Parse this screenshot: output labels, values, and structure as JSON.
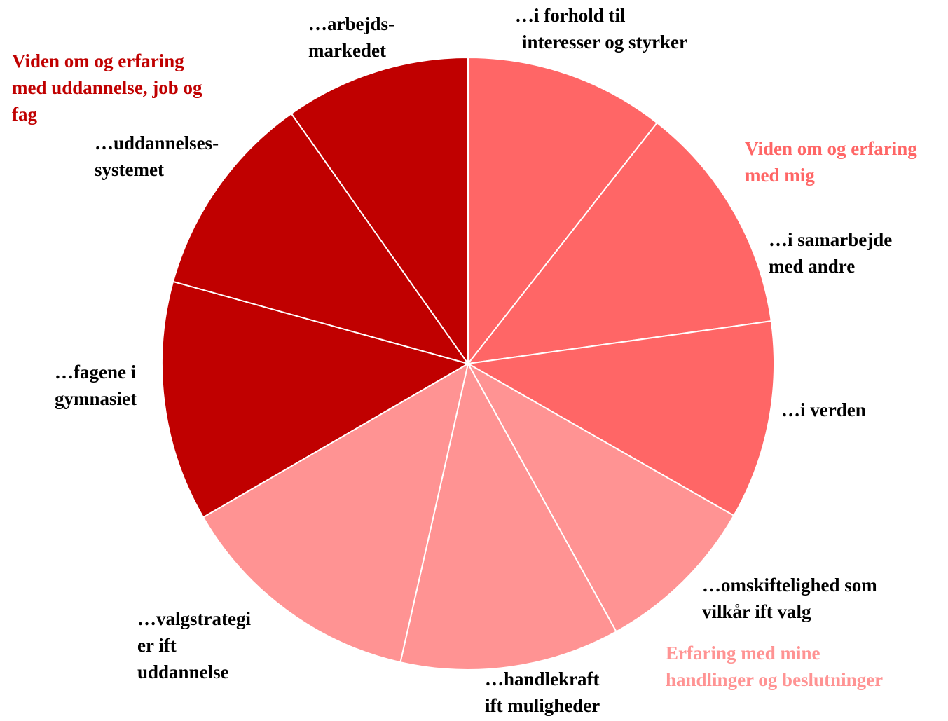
{
  "chart_data": {
    "type": "pie",
    "labels": [
      [
        "…i forhold til",
        "interesser og styrker"
      ],
      [
        "…i samarbejde",
        "med andre"
      ],
      [
        "…i verden"
      ],
      [
        "…omskiftelighed som",
        "vilkår ift valg"
      ],
      [
        "…handlekraft",
        "ift muligheder"
      ],
      [
        "…valgstrategi",
        "er ift",
        "uddannelse"
      ],
      [
        "…fagene i",
        "gymnasiet"
      ],
      [
        "…uddannelses-",
        "systemet"
      ],
      [
        "…arbejds-",
        "markedet"
      ]
    ],
    "values": [
      10.6,
      12.2,
      10.5,
      8.7,
      11.6,
      13.1,
      12.7,
      10.9,
      9.8
    ],
    "colors": [
      "#ff6666",
      "#ff6666",
      "#ff6666",
      "#ff9393",
      "#ff9393",
      "#ff9393",
      "#c00000",
      "#c00000",
      "#c00000"
    ],
    "groups": [
      {
        "name": [
          "Viden om og erfaring",
          "med mig"
        ],
        "color": "#ff6666"
      },
      {
        "name": [
          "Erfaring med mine",
          "handlinger og beslutninger"
        ],
        "color": "#ff9393"
      },
      {
        "name": [
          "Viden om og erfaring",
          "med uddannelse, job og",
          "fag"
        ],
        "color": "#c00000"
      }
    ]
  }
}
